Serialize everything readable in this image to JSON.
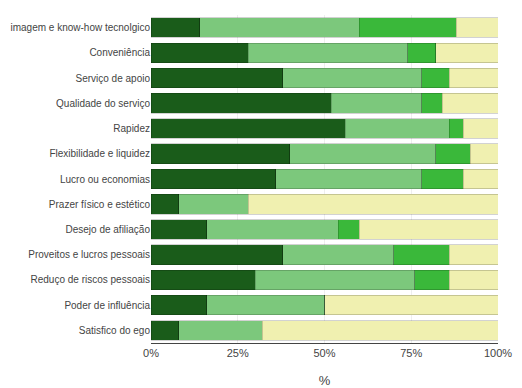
{
  "chart_data": {
    "type": "bar",
    "orientation": "horizontal",
    "stacked": true,
    "categories": [
      "imagem e know-how tecnolgico",
      "Conveniência",
      "Serviço de apoio",
      "Qualidade do serviço",
      "Rapidez",
      "Flexibilidade e liquidez",
      "Lucro ou economias",
      "Prazer físico e estético",
      "Desejo de afiliação",
      "Proveitos e lucros pessoais",
      "Reduço de riscos pessoais",
      "Poder de influência",
      "Satisfico do ego"
    ],
    "series": [
      {
        "color": "#1a5c1a",
        "values": [
          14,
          28,
          38,
          52,
          56,
          40,
          36,
          8,
          16,
          38,
          30,
          16,
          8
        ]
      },
      {
        "color": "#7cc87c",
        "values": [
          46,
          46,
          40,
          26,
          30,
          42,
          42,
          20,
          38,
          32,
          46,
          34,
          24
        ]
      },
      {
        "color": "#3ab83a",
        "values": [
          28,
          8,
          8,
          6,
          4,
          10,
          12,
          0,
          6,
          16,
          10,
          0,
          0
        ]
      },
      {
        "color": "#f0f0b0",
        "values": [
          12,
          18,
          14,
          16,
          10,
          8,
          10,
          72,
          40,
          14,
          14,
          50,
          68
        ]
      }
    ],
    "xlabel": "%",
    "xlim": [
      0,
      100
    ],
    "xticks": [
      {
        "value": 0,
        "label": "0%"
      },
      {
        "value": 25,
        "label": "25%"
      },
      {
        "value": 50,
        "label": "50%"
      },
      {
        "value": 75,
        "label": "75%"
      },
      {
        "value": 100,
        "label": "100%"
      }
    ],
    "grid": true
  }
}
